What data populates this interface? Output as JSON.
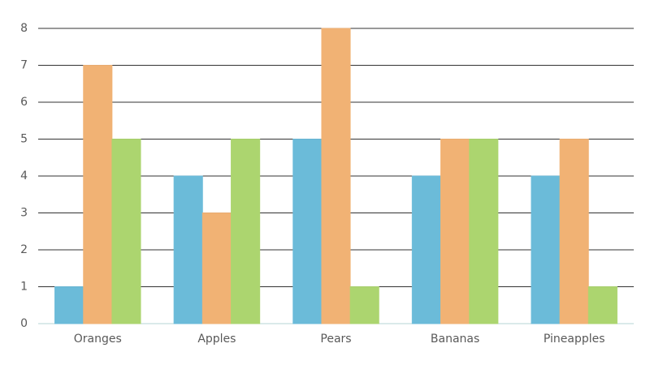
{
  "chart_data": {
    "type": "bar",
    "categories": [
      "Oranges",
      "Apples",
      "Pears",
      "Bananas",
      "Pineapples"
    ],
    "series": [
      {
        "color": "#6bbbd9",
        "values": [
          1,
          4,
          5,
          4,
          4
        ]
      },
      {
        "color": "#f1b274",
        "values": [
          7,
          3,
          8,
          5,
          5
        ]
      },
      {
        "color": "#acd56f",
        "values": [
          5,
          5,
          1,
          5,
          1
        ]
      }
    ],
    "ylim": [
      0,
      8
    ],
    "yticks": [
      0,
      1,
      2,
      3,
      4,
      5,
      6,
      7,
      8
    ],
    "grid": true
  }
}
